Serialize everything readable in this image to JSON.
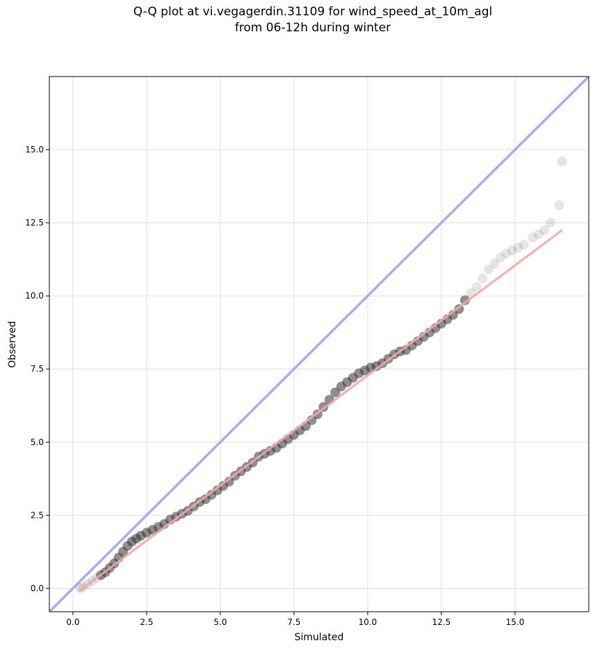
{
  "chart_data": {
    "type": "scatter",
    "title_line1": "Q-Q plot at vi.vegagerdin.31109 for wind_speed_at_10m_agl",
    "title_line2": "from 06-12h during winter",
    "xlabel": "Simulated",
    "ylabel": "Observed",
    "xlim": [
      -0.8,
      17.5
    ],
    "ylim": [
      -0.8,
      17.5
    ],
    "xticks": [
      0.0,
      2.5,
      5.0,
      7.5,
      10.0,
      12.5,
      15.0
    ],
    "yticks": [
      0.0,
      2.5,
      5.0,
      7.5,
      10.0,
      12.5,
      15.0
    ],
    "xtick_labels": [
      "0.0",
      "2.5",
      "5.0",
      "7.5",
      "10.0",
      "12.5",
      "15.0"
    ],
    "ytick_labels": [
      "0.0",
      "2.5",
      "5.0",
      "7.5",
      "10.0",
      "12.5",
      "15.0"
    ],
    "grid": true,
    "identity_line": {
      "color": "#aaaaf0",
      "from": [
        -0.8,
        -0.8
      ],
      "to": [
        17.5,
        17.5
      ]
    },
    "fit_line": {
      "color": "#f5a5a5",
      "from": [
        0.2,
        -0.1
      ],
      "to": [
        16.6,
        12.25
      ]
    },
    "points_color": "#333333",
    "points": [
      [
        0.25,
        0.0
      ],
      [
        0.35,
        0.05
      ],
      [
        0.5,
        0.15
      ],
      [
        0.65,
        0.25
      ],
      [
        0.8,
        0.35
      ],
      [
        0.95,
        0.45
      ],
      [
        1.1,
        0.55
      ],
      [
        1.25,
        0.7
      ],
      [
        1.4,
        0.85
      ],
      [
        1.55,
        1.05
      ],
      [
        1.7,
        1.25
      ],
      [
        1.85,
        1.45
      ],
      [
        2.0,
        1.6
      ],
      [
        2.15,
        1.7
      ],
      [
        2.3,
        1.8
      ],
      [
        2.5,
        1.9
      ],
      [
        2.7,
        2.0
      ],
      [
        2.9,
        2.1
      ],
      [
        3.1,
        2.2
      ],
      [
        3.3,
        2.35
      ],
      [
        3.5,
        2.45
      ],
      [
        3.7,
        2.55
      ],
      [
        3.9,
        2.65
      ],
      [
        4.1,
        2.8
      ],
      [
        4.3,
        2.95
      ],
      [
        4.5,
        3.05
      ],
      [
        4.7,
        3.2
      ],
      [
        4.9,
        3.35
      ],
      [
        5.1,
        3.5
      ],
      [
        5.3,
        3.65
      ],
      [
        5.5,
        3.85
      ],
      [
        5.7,
        4.0
      ],
      [
        5.9,
        4.15
      ],
      [
        6.1,
        4.3
      ],
      [
        6.3,
        4.5
      ],
      [
        6.5,
        4.6
      ],
      [
        6.7,
        4.7
      ],
      [
        6.9,
        4.8
      ],
      [
        7.1,
        4.95
      ],
      [
        7.3,
        5.1
      ],
      [
        7.5,
        5.25
      ],
      [
        7.7,
        5.4
      ],
      [
        7.9,
        5.55
      ],
      [
        8.1,
        5.75
      ],
      [
        8.3,
        5.95
      ],
      [
        8.5,
        6.2
      ],
      [
        8.7,
        6.45
      ],
      [
        8.9,
        6.7
      ],
      [
        9.1,
        6.9
      ],
      [
        9.3,
        7.05
      ],
      [
        9.5,
        7.2
      ],
      [
        9.7,
        7.35
      ],
      [
        9.9,
        7.45
      ],
      [
        10.1,
        7.55
      ],
      [
        10.3,
        7.6
      ],
      [
        10.5,
        7.7
      ],
      [
        10.7,
        7.85
      ],
      [
        10.9,
        8.0
      ],
      [
        11.1,
        8.1
      ],
      [
        11.3,
        8.15
      ],
      [
        11.5,
        8.3
      ],
      [
        11.7,
        8.45
      ],
      [
        11.9,
        8.6
      ],
      [
        12.1,
        8.75
      ],
      [
        12.3,
        8.9
      ],
      [
        12.5,
        9.05
      ],
      [
        12.7,
        9.2
      ],
      [
        12.9,
        9.35
      ],
      [
        13.1,
        9.55
      ],
      [
        13.3,
        9.85
      ],
      [
        13.5,
        10.1
      ],
      [
        13.7,
        10.3
      ],
      [
        13.9,
        10.6
      ],
      [
        14.1,
        10.9
      ],
      [
        14.3,
        11.1
      ],
      [
        14.5,
        11.3
      ],
      [
        14.7,
        11.45
      ],
      [
        14.9,
        11.55
      ],
      [
        15.1,
        11.65
      ],
      [
        15.3,
        11.75
      ],
      [
        15.6,
        12.0
      ],
      [
        15.8,
        12.1
      ],
      [
        16.0,
        12.25
      ],
      [
        16.2,
        12.5
      ],
      [
        16.5,
        13.1
      ],
      [
        16.6,
        14.6
      ]
    ]
  }
}
